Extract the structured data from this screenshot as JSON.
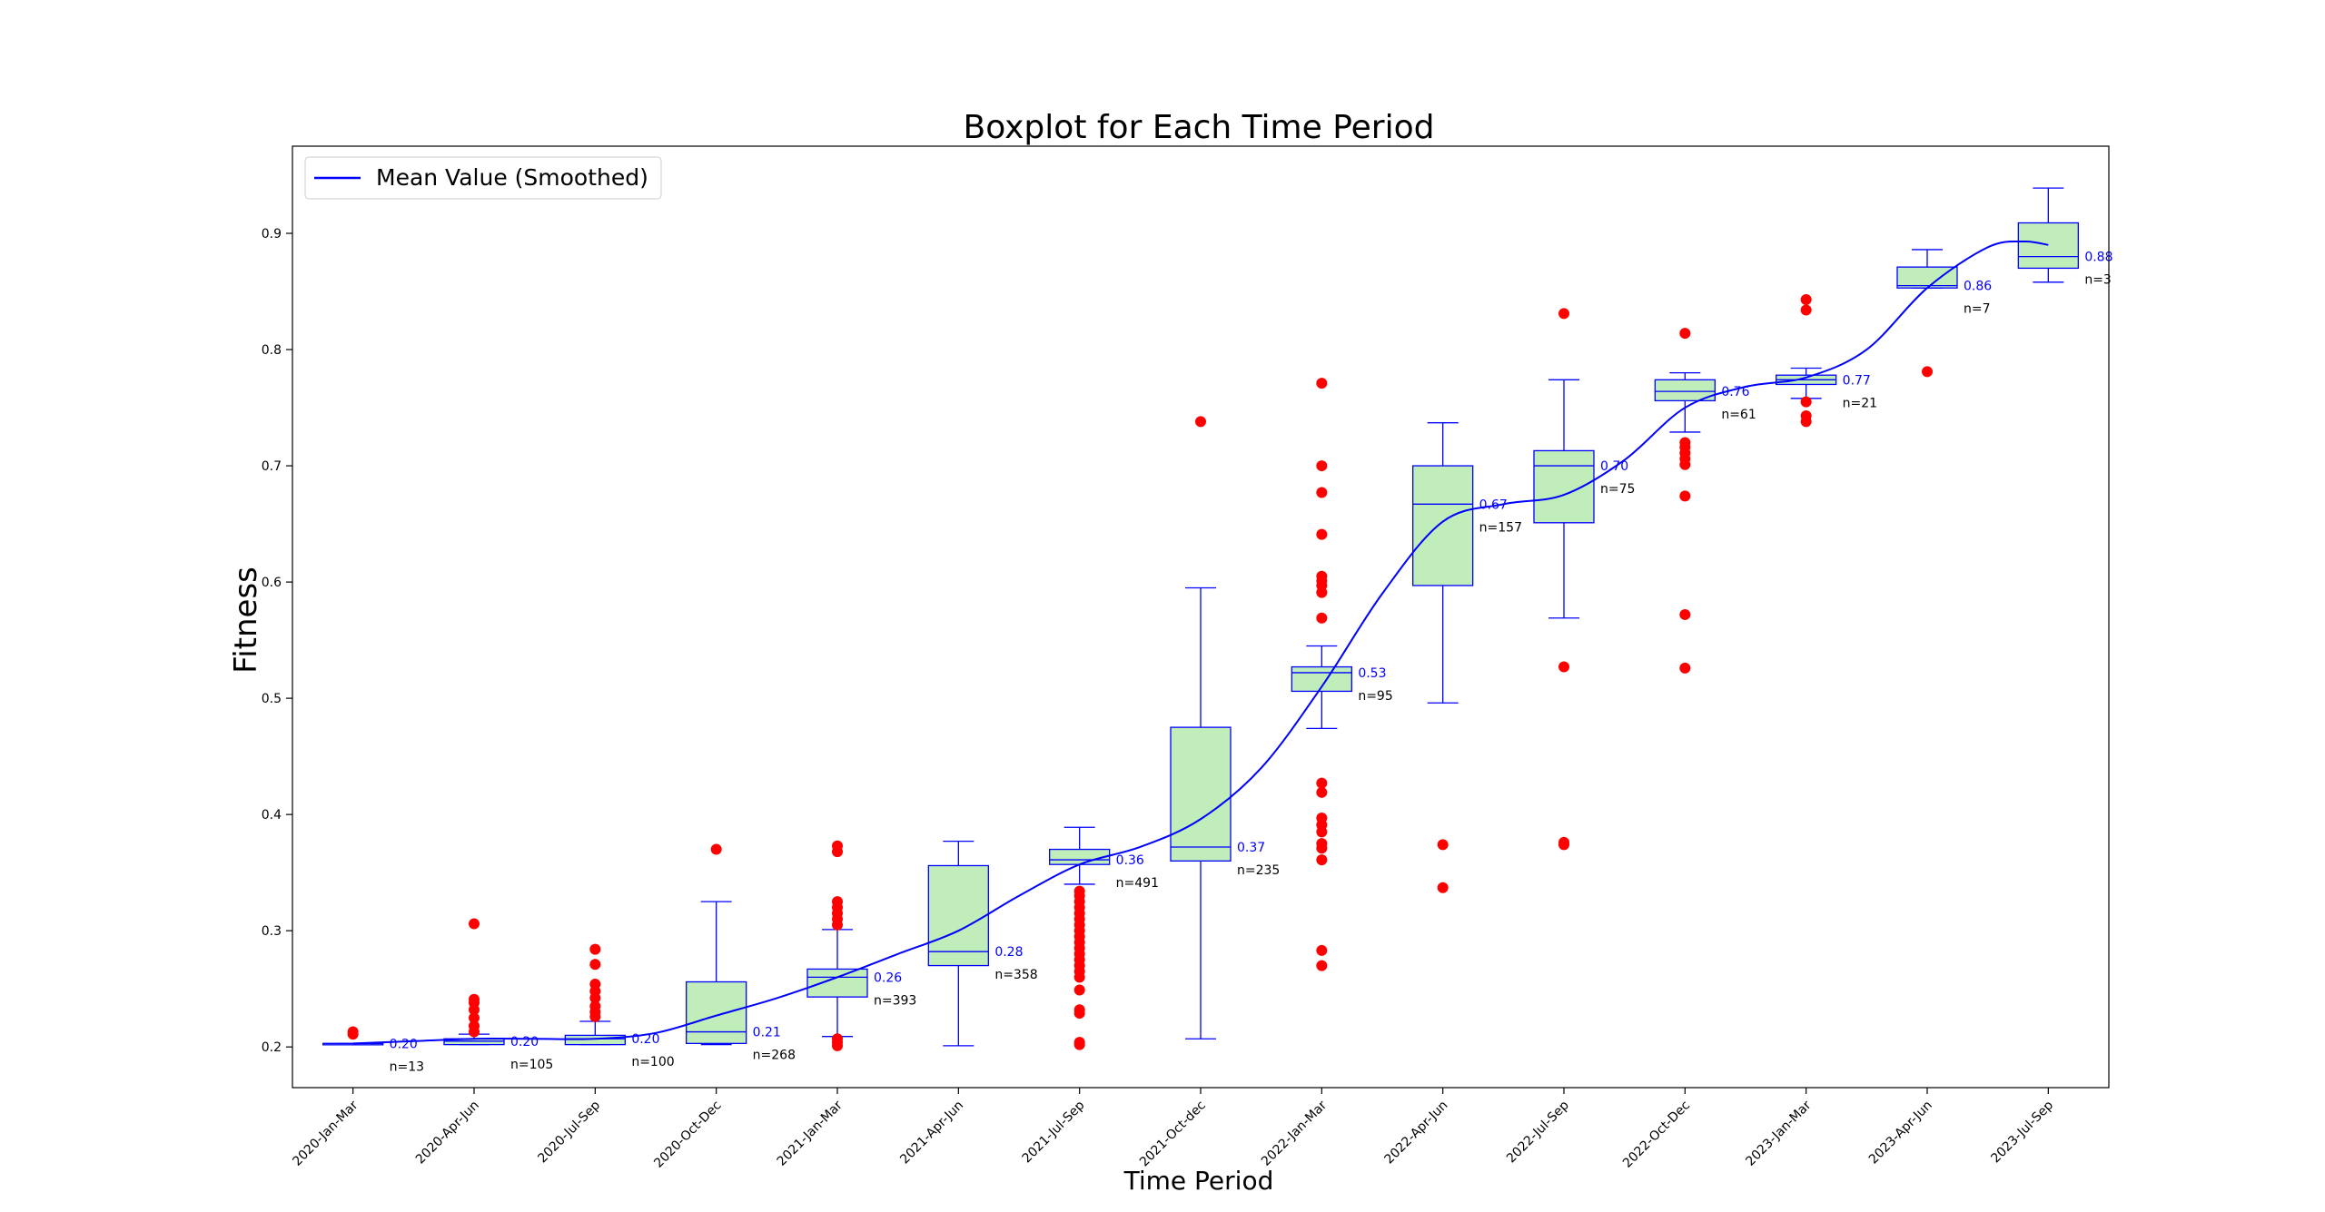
{
  "chart_data": {
    "type": "boxplot",
    "title": "Boxplot for Each Time Period",
    "xlabel": "Time Period",
    "ylabel": "Fitness",
    "ylim": [
      0.165,
      0.975
    ],
    "yticks": [
      0.2,
      0.3,
      0.4,
      0.5,
      0.6,
      0.7,
      0.8,
      0.9
    ],
    "legend": {
      "label": "Mean Value (Smoothed)",
      "placement": "top-left"
    },
    "colors": {
      "box_fill": "#c1edbb",
      "box_line": "#0000ff",
      "outlier": "#ff0000",
      "mean_line": "#0000ff",
      "n_text": "#000000"
    },
    "categories": [
      "2020-Jan-Mar",
      "2020-Apr-Jun",
      "2020-Jul-Sep",
      "2020-Oct-Dec",
      "2021-Jan-Mar",
      "2021-Apr-Jun",
      "2021-Jul-Sep",
      "2021-Oct-dec",
      "2022-Jan-Mar",
      "2022-Apr-Jun",
      "2022-Jul-Sep",
      "2022-Oct-Dec",
      "2023-Jan-Mar",
      "2023-Apr-Jun",
      "2023-Jul-Sep"
    ],
    "boxes": [
      {
        "whislo": 0.202,
        "q1": 0.202,
        "med": 0.203,
        "q3": 0.203,
        "whishi": 0.203,
        "fliers": [
          0.211,
          0.213
        ],
        "mean_label": "0.20",
        "n_label": "n=13"
      },
      {
        "whislo": 0.202,
        "q1": 0.202,
        "med": 0.205,
        "q3": 0.207,
        "whishi": 0.211,
        "fliers": [
          0.213,
          0.218,
          0.225,
          0.232,
          0.238,
          0.241,
          0.306
        ],
        "mean_label": "0.20",
        "n_label": "n=105"
      },
      {
        "whislo": 0.202,
        "q1": 0.202,
        "med": 0.207,
        "q3": 0.21,
        "whishi": 0.222,
        "fliers": [
          0.226,
          0.23,
          0.235,
          0.242,
          0.248,
          0.254,
          0.271,
          0.284
        ],
        "mean_label": "0.20",
        "n_label": "n=100"
      },
      {
        "whislo": 0.202,
        "q1": 0.203,
        "med": 0.213,
        "q3": 0.256,
        "whishi": 0.325,
        "fliers": [
          0.37
        ],
        "mean_label": "0.21",
        "n_label": "n=268"
      },
      {
        "whislo": 0.209,
        "q1": 0.243,
        "med": 0.26,
        "q3": 0.267,
        "whishi": 0.301,
        "fliers": [
          0.201,
          0.204,
          0.207,
          0.305,
          0.31,
          0.315,
          0.32,
          0.325,
          0.368,
          0.373
        ],
        "mean_label": "0.26",
        "n_label": "n=393"
      },
      {
        "whislo": 0.201,
        "q1": 0.27,
        "med": 0.282,
        "q3": 0.356,
        "whishi": 0.377,
        "fliers": [],
        "mean_label": "0.28",
        "n_label": "n=358"
      },
      {
        "whislo": 0.34,
        "q1": 0.357,
        "med": 0.361,
        "q3": 0.37,
        "whishi": 0.389,
        "fliers": [
          0.202,
          0.204,
          0.229,
          0.232,
          0.249,
          0.26,
          0.265,
          0.27,
          0.275,
          0.28,
          0.285,
          0.29,
          0.295,
          0.3,
          0.305,
          0.31,
          0.315,
          0.32,
          0.325,
          0.33,
          0.334
        ],
        "mean_label": "0.36",
        "n_label": "n=491"
      },
      {
        "whislo": 0.207,
        "q1": 0.36,
        "med": 0.372,
        "q3": 0.475,
        "whishi": 0.595,
        "fliers": [
          0.738
        ],
        "mean_label": "0.37",
        "n_label": "n=235"
      },
      {
        "whislo": 0.474,
        "q1": 0.506,
        "med": 0.522,
        "q3": 0.527,
        "whishi": 0.545,
        "fliers": [
          0.27,
          0.283,
          0.361,
          0.371,
          0.375,
          0.385,
          0.391,
          0.397,
          0.419,
          0.427,
          0.569,
          0.591,
          0.597,
          0.601,
          0.605,
          0.641,
          0.677,
          0.7,
          0.771
        ],
        "mean_label": "0.53",
        "n_label": "n=95"
      },
      {
        "whislo": 0.496,
        "q1": 0.597,
        "med": 0.667,
        "q3": 0.7,
        "whishi": 0.737,
        "fliers": [
          0.337,
          0.374
        ],
        "mean_label": "0.67",
        "n_label": "n=157"
      },
      {
        "whislo": 0.569,
        "q1": 0.651,
        "med": 0.7,
        "q3": 0.713,
        "whishi": 0.774,
        "fliers": [
          0.374,
          0.376,
          0.527,
          0.831
        ],
        "mean_label": "0.70",
        "n_label": "n=75"
      },
      {
        "whislo": 0.729,
        "q1": 0.756,
        "med": 0.764,
        "q3": 0.774,
        "whishi": 0.78,
        "fliers": [
          0.526,
          0.572,
          0.674,
          0.701,
          0.706,
          0.711,
          0.716,
          0.72,
          0.814
        ],
        "mean_label": "0.76",
        "n_label": "n=61"
      },
      {
        "whislo": 0.758,
        "q1": 0.77,
        "med": 0.774,
        "q3": 0.778,
        "whishi": 0.784,
        "fliers": [
          0.738,
          0.743,
          0.755,
          0.834,
          0.843
        ],
        "mean_label": "0.77",
        "n_label": "n=21"
      },
      {
        "whislo": 0.853,
        "q1": 0.853,
        "med": 0.855,
        "q3": 0.871,
        "whishi": 0.886,
        "fliers": [
          0.781
        ],
        "mean_label": "0.86",
        "n_label": "n=7"
      },
      {
        "whislo": 0.858,
        "q1": 0.87,
        "med": 0.88,
        "q3": 0.909,
        "whishi": 0.939,
        "fliers": [],
        "mean_label": "0.88",
        "n_label": "n=3"
      }
    ],
    "mean_line": {
      "x_positions": [
        0,
        0.5,
        1,
        1.5,
        2,
        2.5,
        3,
        3.5,
        4,
        4.5,
        5,
        5.5,
        6,
        6.5,
        7,
        7.5,
        8,
        8.5,
        9,
        9.5,
        10,
        10.5,
        11,
        11.5,
        12,
        12.5,
        13,
        13.5,
        13.8,
        14.0
      ],
      "values": [
        0.203,
        0.205,
        0.207,
        0.207,
        0.207,
        0.212,
        0.227,
        0.242,
        0.26,
        0.28,
        0.3,
        0.33,
        0.357,
        0.372,
        0.396,
        0.44,
        0.51,
        0.59,
        0.652,
        0.667,
        0.675,
        0.705,
        0.75,
        0.768,
        0.776,
        0.8,
        0.853,
        0.888,
        0.893,
        0.89
      ]
    }
  }
}
